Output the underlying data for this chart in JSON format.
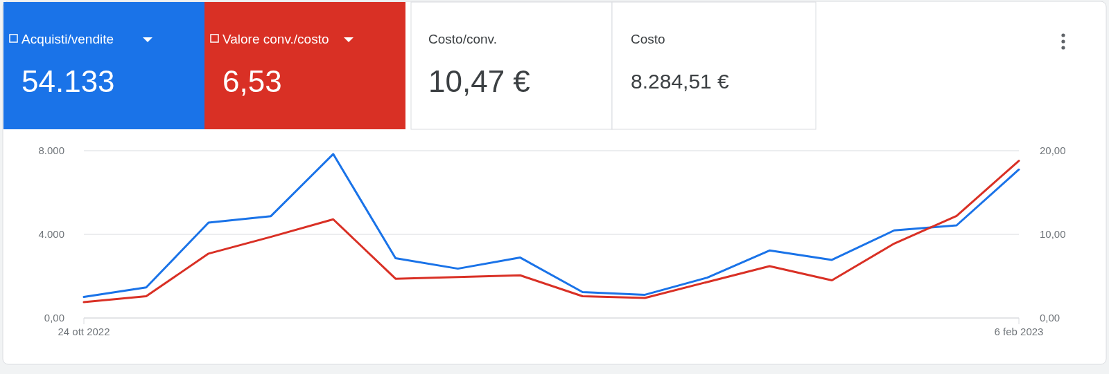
{
  "chart_data": {
    "type": "line",
    "x": [
      "2022-10-24",
      "2022-10-31",
      "2022-11-07",
      "2022-11-14",
      "2022-11-21",
      "2022-11-28",
      "2022-12-05",
      "2022-12-12",
      "2022-12-19",
      "2022-12-26",
      "2023-01-02",
      "2023-01-09",
      "2023-01-16",
      "2023-01-23",
      "2023-01-30",
      "2023-02-06"
    ],
    "series": [
      {
        "name": "Acquisti/vendite",
        "color": "#1a73e8",
        "values": [
          1010,
          1460,
          4560,
          4870,
          7840,
          2860,
          2360,
          2890,
          1240,
          1110,
          1930,
          3230,
          2780,
          4190,
          4430,
          7100
        ]
      },
      {
        "name": "Valore conv./costo",
        "color": "#d93025",
        "axis": "y2",
        "values": [
          1.9,
          2.6,
          7.7,
          9.7,
          11.8,
          4.7,
          4.9,
          5.1,
          2.6,
          2.4,
          4.3,
          6.2,
          4.5,
          8.9,
          12.2,
          18.8
        ]
      }
    ],
    "xlim": [
      "2022-10-24",
      "2023-02-06"
    ],
    "xticks": [
      {
        "value": "2022-10-24",
        "label": "24 ott 2022"
      },
      {
        "value": "2023-02-06",
        "label": "6 feb 2023"
      }
    ],
    "ylim": [
      0,
      8000
    ],
    "yticks": [
      {
        "value": 0,
        "label": "0,00"
      },
      {
        "value": 4000,
        "label": "4.000"
      },
      {
        "value": 8000,
        "label": "8.000"
      }
    ],
    "y2lim": [
      0,
      20
    ],
    "y2ticks": [
      {
        "value": 0,
        "label": "0,00"
      },
      {
        "value": 10,
        "label": "10,00"
      },
      {
        "value": 20,
        "label": "20,00"
      }
    ],
    "grid": "y",
    "legend": "top left",
    "line_style": "solid",
    "annotations": [
      "54.133",
      "6,53",
      "Costo/conv.",
      "10,47 €",
      "Costo",
      "8.284,51 €"
    ]
  }
}
